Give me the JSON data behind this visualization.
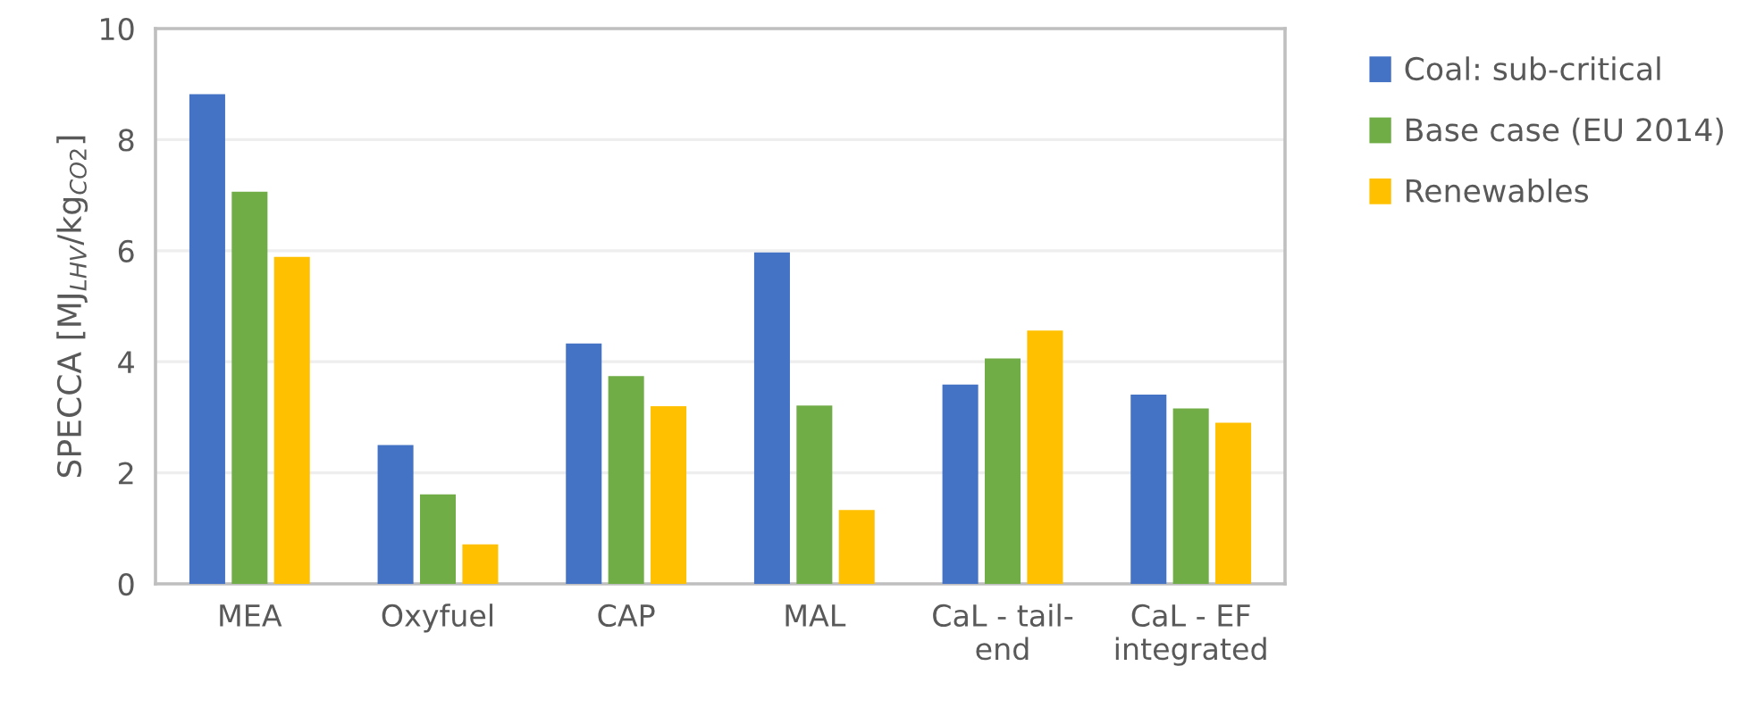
{
  "chart_data": {
    "type": "bar",
    "ylabel": "SPECCA [MJ$_{LHV}$/kg$_{CO2}$]",
    "categories": [
      "MEA",
      "Oxyfuel",
      "CAP",
      "MAL",
      "CaL - tail-\nend",
      "CaL - EF\nintegrated"
    ],
    "series": [
      {
        "name": "Coal: sub-critical",
        "color": "#4472c4",
        "values": [
          8.82,
          2.5,
          4.33,
          5.97,
          3.59,
          3.41
        ]
      },
      {
        "name": "Base case (EU 2014)",
        "color": "#70ad47",
        "values": [
          7.06,
          1.61,
          3.74,
          3.21,
          4.06,
          3.16
        ]
      },
      {
        "name": "Renewables",
        "color": "#ffc000",
        "values": [
          5.89,
          0.71,
          3.2,
          1.33,
          4.56,
          2.9
        ]
      }
    ],
    "ylim": [
      0,
      10
    ],
    "yticks": [
      0,
      2,
      4,
      6,
      8,
      10
    ],
    "grid": "y",
    "legend": "right"
  }
}
